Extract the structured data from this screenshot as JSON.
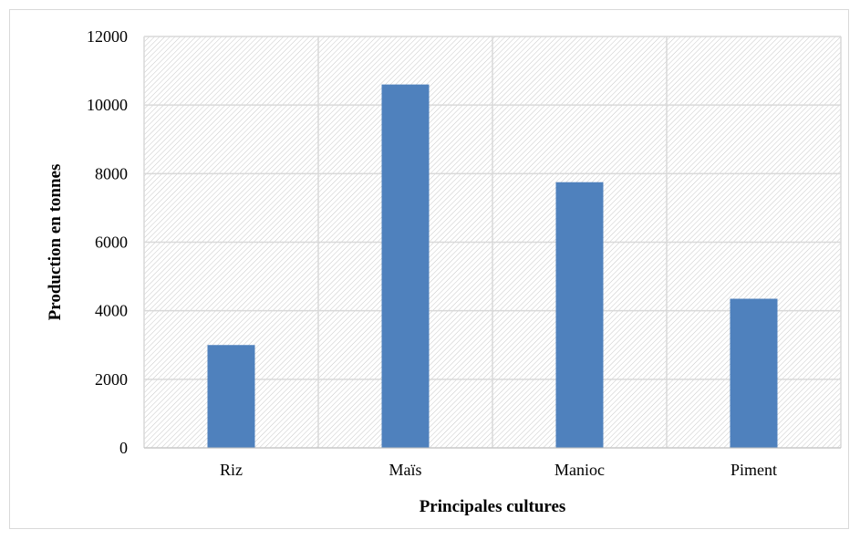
{
  "chart_data": {
    "type": "bar",
    "title": "",
    "xlabel": "Principales cultures",
    "ylabel": "Production en tonnes",
    "categories": [
      "Riz",
      "Maïs",
      "Manioc",
      "Piment"
    ],
    "values": [
      3000,
      10600,
      7750,
      4350
    ],
    "ylim": [
      0,
      12000
    ],
    "yticks": [
      0,
      2000,
      4000,
      6000,
      8000,
      10000,
      12000
    ],
    "grid": true,
    "legend": "none",
    "colors": {
      "bar": "#4f81bd",
      "grid": "#d9d9d9",
      "hatch": "#bfbfbf"
    }
  }
}
